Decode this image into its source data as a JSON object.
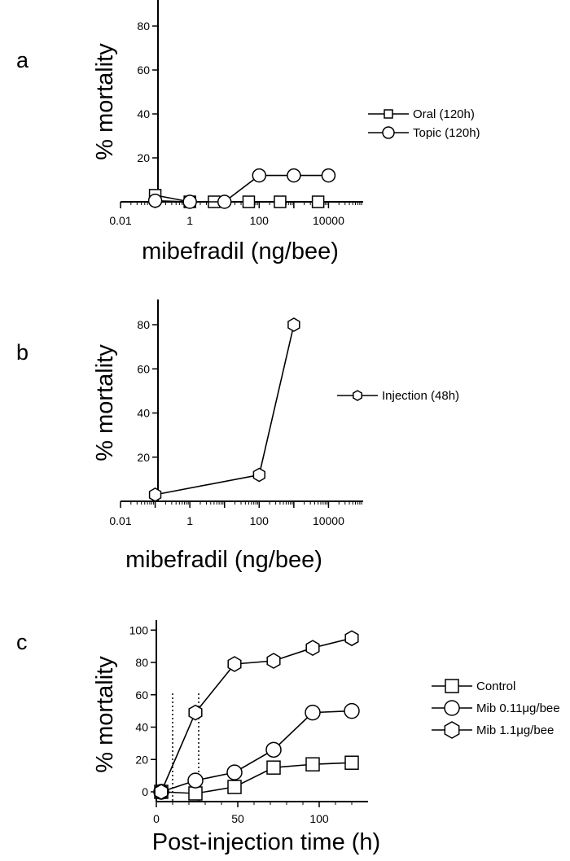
{
  "chart_data": [
    {
      "panel_label": "a",
      "type": "line",
      "xscale": "log",
      "xlabel": "mibefradil (ng/bee)",
      "ylabel": "% mortality",
      "xlim": [
        0.01,
        100000
      ],
      "ylim": [
        0,
        90
      ],
      "xticks": [
        0.01,
        1,
        100,
        10000
      ],
      "xtick_labels": [
        "0.01",
        "1",
        "100",
        "10000"
      ],
      "yticks": [
        20,
        40,
        60,
        80
      ],
      "ytick_labels": [
        "20",
        "40",
        "60",
        "80"
      ],
      "grid": false,
      "legend_position": "right",
      "series": [
        {
          "name": "Oral (120h)",
          "marker": "square",
          "x": [
            0.1,
            1,
            5,
            50,
            400,
            5000
          ],
          "y": [
            3,
            0,
            0,
            0,
            0,
            0
          ]
        },
        {
          "name": "Topic (120h)",
          "marker": "circle",
          "x": [
            0.1,
            1,
            10,
            100,
            1000,
            10000
          ],
          "y": [
            0.5,
            0,
            0,
            12,
            12,
            12
          ]
        }
      ]
    },
    {
      "panel_label": "b",
      "type": "line",
      "xscale": "log",
      "xlabel": "mibefradil (ng/bee)",
      "ylabel": "% mortality",
      "xlim": [
        0.01,
        100000
      ],
      "ylim": [
        0,
        90
      ],
      "xticks": [
        0.01,
        1,
        100,
        10000
      ],
      "xtick_labels": [
        "0.01",
        "1",
        "100",
        "10000"
      ],
      "yticks": [
        20,
        40,
        60,
        80
      ],
      "ytick_labels": [
        "20",
        "40",
        "60",
        "80"
      ],
      "grid": false,
      "legend_position": "right",
      "series": [
        {
          "name": "Injection (48h)",
          "marker": "hexagon",
          "x": [
            0.1,
            100,
            1000
          ],
          "y": [
            3,
            12,
            80
          ]
        }
      ]
    },
    {
      "panel_label": "c",
      "type": "line",
      "xscale": "linear",
      "xlabel": "Post-injection time (h)",
      "ylabel": "% mortality",
      "xlim": [
        -5,
        125
      ],
      "ylim": [
        -8,
        102
      ],
      "xticks": [
        0,
        50,
        100
      ],
      "xtick_labels": [
        "0",
        "50",
        "100"
      ],
      "yticks": [
        0,
        20,
        40,
        60,
        80,
        100
      ],
      "ytick_labels": [
        "0",
        "20",
        "40",
        "60",
        "80",
        "100"
      ],
      "vertical_reference_lines": [
        10,
        26
      ],
      "grid": false,
      "legend_position": "right",
      "series": [
        {
          "name": "Control",
          "marker": "square",
          "x": [
            3,
            24,
            48,
            72,
            96,
            120
          ],
          "y": [
            0,
            -1,
            3,
            15,
            17,
            18
          ]
        },
        {
          "name": "Mib 0.11μg/bee",
          "marker": "circle",
          "x": [
            3,
            24,
            48,
            72,
            96,
            120
          ],
          "y": [
            0,
            7,
            12,
            26,
            49,
            50
          ]
        },
        {
          "name": "Mib 1.1μg/bee",
          "marker": "hexagon",
          "x": [
            3,
            24,
            48,
            72,
            96,
            120
          ],
          "y": [
            0,
            49,
            79,
            81,
            89,
            95
          ]
        }
      ]
    }
  ]
}
